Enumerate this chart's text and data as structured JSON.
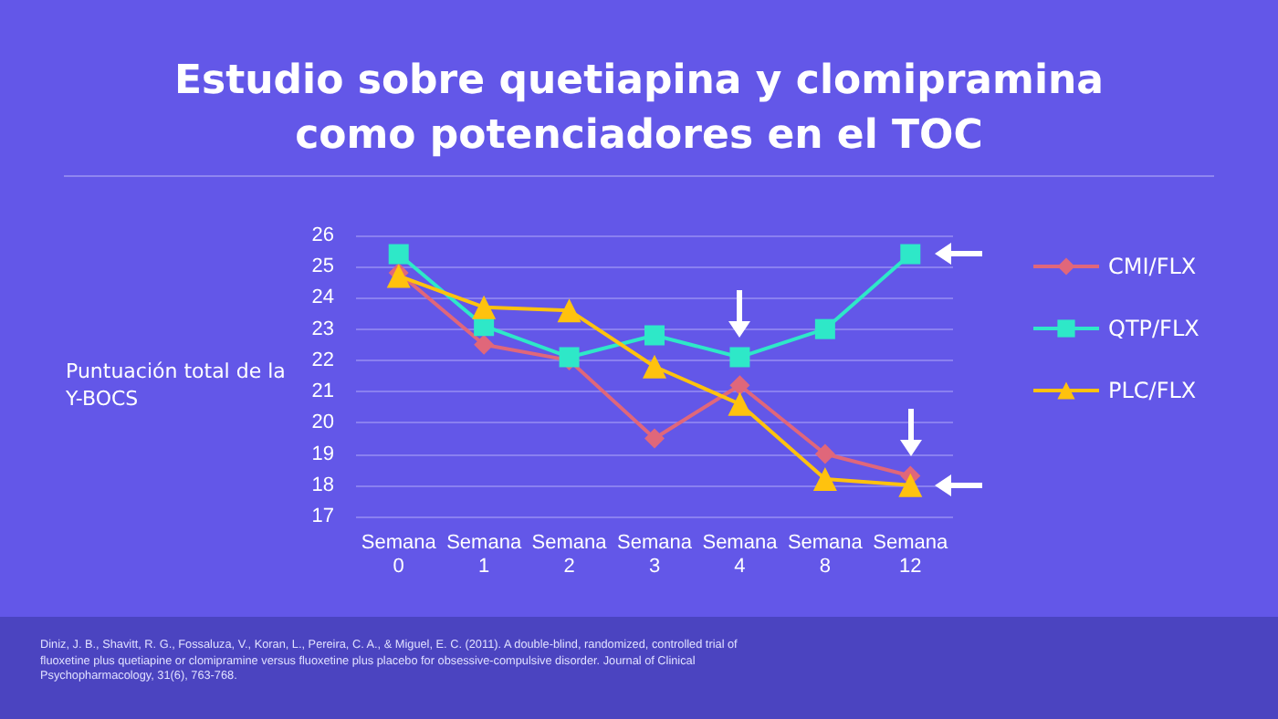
{
  "chart_data": {
    "type": "line",
    "title": "Estudio sobre quetiapina y clomipramina como potenciadores en el TOC",
    "ylabel": "Puntuación total de la Y-BOCS",
    "categories": [
      "Semana\n0",
      "Semana\n1",
      "Semana\n2",
      "Semana\n3",
      "Semana\n4",
      "Semana\n8",
      "Semana\n12"
    ],
    "series": [
      {
        "name": "CMI/FLX",
        "color": "#e0677a",
        "marker": "diamond",
        "values": [
          24.8,
          22.5,
          22.0,
          19.5,
          21.2,
          19.0,
          18.3
        ]
      },
      {
        "name": "QTP/FLX",
        "color": "#2ee8c8",
        "marker": "square",
        "values": [
          25.4,
          23.1,
          22.1,
          22.8,
          22.1,
          23.0,
          25.4
        ]
      },
      {
        "name": "PLC/FLX",
        "color": "#ffc20e",
        "marker": "triangle",
        "values": [
          24.7,
          23.7,
          23.6,
          21.8,
          20.6,
          18.2,
          18.0
        ]
      }
    ],
    "ylim": [
      17,
      26
    ],
    "yticks": [
      17,
      18,
      19,
      20,
      21,
      22,
      23,
      24,
      25,
      26
    ],
    "grid": "y",
    "legend": "right",
    "line_style": "solid",
    "annotations": [
      "Diniz, J. B., Shavitt, R. G., Fossaluza, V., Koran, L., Pereira, C. A., & Miguel, E. C. (2011). A double-blind, randomized, controlled trial of fluoxetine plus quetiapine or clomipramine versus fluoxetine plus placebo for obsessive-compulsive disorder. Journal of Clinical Psychopharmacology, 31(6), 763-768."
    ]
  }
}
